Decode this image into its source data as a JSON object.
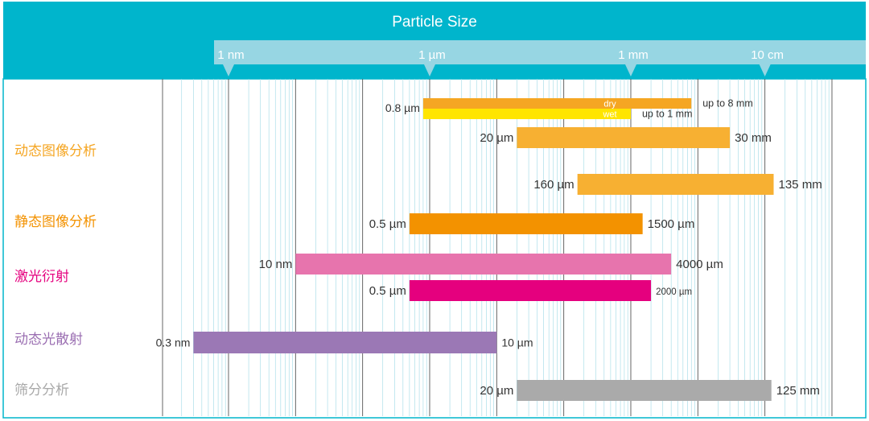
{
  "chart_data": {
    "type": "range-bar",
    "title": "Particle Size",
    "axis": {
      "scale": "log",
      "unit": "m",
      "min": 1e-10,
      "max": 1,
      "ticks": [
        {
          "value": 1e-09,
          "label": "1 nm"
        },
        {
          "value": 1e-06,
          "label": "1 µm"
        },
        {
          "value": 0.001,
          "label": "1 mm"
        },
        {
          "value": 0.1,
          "label": "10 cm"
        }
      ]
    },
    "categories": [
      {
        "name": "动态图像分析",
        "color": "#F5A623"
      },
      {
        "name": "静态图像分析",
        "color": "#F39200"
      },
      {
        "name": "激光衍射",
        "color": "#E5007E"
      },
      {
        "name": "动态光散射",
        "color": "#9B6FB2"
      },
      {
        "name": "筛分分析",
        "color": "#A9A9A9"
      }
    ],
    "bars": [
      {
        "category": "动态图像分析",
        "from": 8e-07,
        "to": 0.008,
        "left_label": "0.8 µm",
        "right_label": "up to 8 mm",
        "inner_label": "dry",
        "color": "#F5A623"
      },
      {
        "category": "动态图像分析",
        "from": 8e-07,
        "to": 0.001,
        "left_label": "",
        "right_label": "up to 1 mm",
        "inner_label": "wet",
        "color": "#FFE500"
      },
      {
        "category": "动态图像分析",
        "from": 2e-05,
        "to": 0.03,
        "left_label": "20 µm",
        "right_label": "30 mm",
        "inner_label": "",
        "color": "#F7B032"
      },
      {
        "category": "动态图像分析",
        "from": 0.00016,
        "to": 0.135,
        "left_label": "160 µm",
        "right_label": "135 mm",
        "inner_label": "",
        "color": "#F7B032"
      },
      {
        "category": "静态图像分析",
        "from": 5e-07,
        "to": 0.0015,
        "left_label": "0.5 µm",
        "right_label": "1500 µm",
        "inner_label": "",
        "color": "#F39200"
      },
      {
        "category": "激光衍射",
        "from": 1e-08,
        "to": 0.004,
        "left_label": "10 nm",
        "right_label": "4000 µm",
        "inner_label": "",
        "color": "#E774AD"
      },
      {
        "category": "激光衍射",
        "from": 5e-07,
        "to": 0.002,
        "left_label": "0.5 µm",
        "right_label": "2000 µm",
        "inner_label": "",
        "color": "#E5007E"
      },
      {
        "category": "动态光散射",
        "from": 3e-10,
        "to": 1e-05,
        "left_label": "0.3 nm",
        "right_label": "10 µm",
        "inner_label": "",
        "color": "#9B78B5"
      },
      {
        "category": "筛分分析",
        "from": 2e-05,
        "to": 0.125,
        "left_label": "20 µm",
        "right_label": "125 mm",
        "inner_label": "",
        "color": "#AAAAAA"
      }
    ],
    "colors": {
      "header": "#00B5CC",
      "ruler": "#97D6E3",
      "decade_line": "#555555",
      "minor_line": "#9ED9E5"
    }
  }
}
